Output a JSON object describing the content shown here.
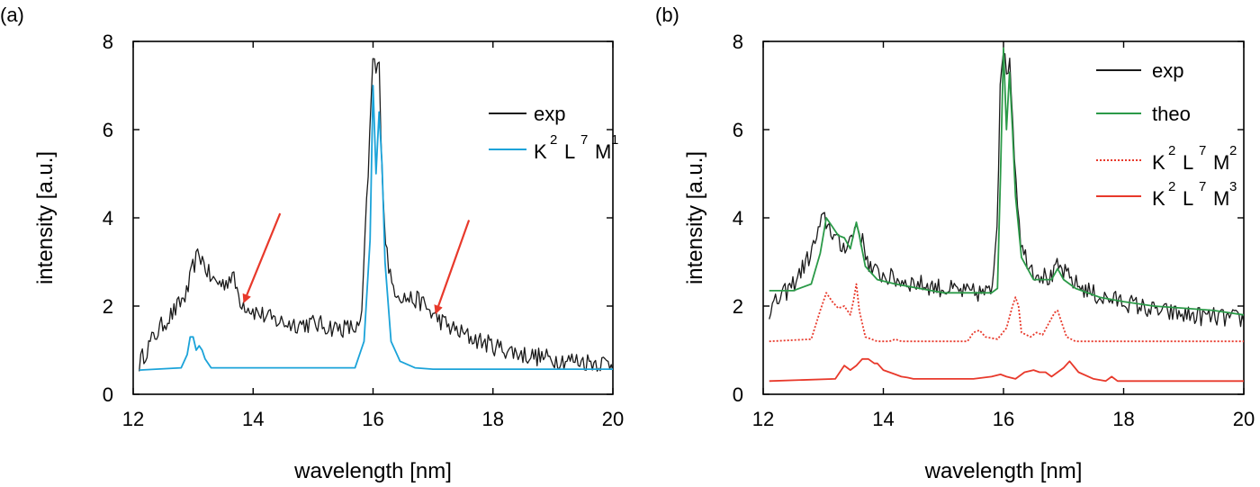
{
  "chart_data": [
    {
      "panel_label": "(a)",
      "type": "line",
      "xlabel": "wavelength [nm]",
      "ylabel": "intensity [a.u.]",
      "xlim": [
        12,
        20
      ],
      "ylim": [
        0,
        8
      ],
      "xticks": [
        "12",
        "14",
        "16",
        "18",
        "20"
      ],
      "yticks": [
        "0",
        "2",
        "4",
        "6",
        "8"
      ],
      "legend_position": "top-right",
      "series": [
        {
          "name": "exp",
          "label_main": "exp",
          "color": "#1a1a1a",
          "x": [
            12.1,
            12.3,
            12.5,
            12.7,
            12.9,
            13.0,
            13.1,
            13.3,
            13.5,
            13.65,
            13.8,
            14.0,
            14.3,
            14.6,
            15.0,
            15.4,
            15.8,
            15.95,
            16.0,
            16.05,
            16.1,
            16.15,
            16.2,
            16.3,
            16.5,
            16.8,
            17.0,
            17.3,
            17.6,
            18.0,
            18.5,
            19.0,
            19.5,
            20.0
          ],
          "y": [
            0.7,
            1.2,
            1.6,
            1.9,
            2.3,
            2.9,
            3.2,
            2.6,
            2.5,
            2.7,
            2.1,
            1.9,
            1.7,
            1.6,
            1.6,
            1.5,
            1.5,
            6.0,
            7.7,
            7.3,
            7.5,
            5.2,
            3.6,
            2.5,
            2.2,
            2.1,
            1.8,
            1.5,
            1.3,
            1.1,
            0.9,
            0.8,
            0.75,
            0.7
          ],
          "noise": 0.22
        },
        {
          "name": "K2L7M1",
          "label_main": "KLM",
          "label_sup": [
            "2",
            "7",
            "1"
          ],
          "color": "#1ba3d9",
          "x": [
            12.1,
            12.8,
            12.9,
            12.95,
            13.0,
            13.05,
            13.1,
            13.15,
            13.2,
            13.3,
            15.7,
            15.85,
            15.95,
            16.0,
            16.05,
            16.1,
            16.15,
            16.2,
            16.3,
            16.45,
            16.7,
            17.0,
            20.0
          ],
          "y": [
            0.55,
            0.6,
            0.9,
            1.3,
            1.3,
            1.0,
            1.1,
            1.0,
            0.8,
            0.6,
            0.6,
            1.2,
            3.5,
            7.0,
            5.0,
            6.4,
            5.2,
            3.0,
            1.2,
            0.75,
            0.6,
            0.57,
            0.57
          ]
        }
      ],
      "annotations": [
        {
          "type": "arrow",
          "color": "#e8392b",
          "from": [
            14.45,
            4.1
          ],
          "to": [
            13.85,
            2.1
          ]
        },
        {
          "type": "arrow",
          "color": "#e8392b",
          "from": [
            17.6,
            3.95
          ],
          "to": [
            17.05,
            1.85
          ]
        }
      ]
    },
    {
      "panel_label": "(b)",
      "type": "line",
      "xlabel": "wavelength [nm]",
      "ylabel": "intensity [a.u.]",
      "xlim": [
        12,
        20
      ],
      "ylim": [
        0,
        8
      ],
      "xticks": [
        "12",
        "14",
        "16",
        "18",
        "20"
      ],
      "yticks": [
        "0",
        "2",
        "4",
        "6",
        "8"
      ],
      "legend_position": "top-right",
      "series": [
        {
          "name": "exp",
          "label_main": "exp",
          "color": "#1a1a1a",
          "x": [
            12.1,
            12.5,
            12.8,
            13.0,
            13.1,
            13.3,
            13.5,
            13.55,
            13.8,
            14.2,
            14.6,
            15.0,
            15.4,
            15.8,
            15.9,
            15.95,
            16.0,
            16.05,
            16.1,
            16.2,
            16.3,
            16.5,
            16.8,
            16.9,
            17.2,
            17.6,
            18.0,
            18.5,
            19.0,
            19.5,
            20.0
          ],
          "y": [
            1.9,
            2.5,
            3.2,
            4.0,
            3.8,
            3.3,
            3.6,
            3.9,
            2.8,
            2.6,
            2.5,
            2.4,
            2.3,
            2.3,
            4.0,
            7.5,
            7.8,
            7.2,
            7.7,
            5.0,
            3.3,
            2.8,
            2.6,
            2.9,
            2.5,
            2.2,
            2.1,
            1.9,
            1.8,
            1.75,
            1.7
          ],
          "noise": 0.22
        },
        {
          "name": "theo",
          "label_main": "theo",
          "color": "#2b9a48",
          "x": [
            12.1,
            12.5,
            12.8,
            12.95,
            13.05,
            13.15,
            13.25,
            13.35,
            13.45,
            13.5,
            13.55,
            13.6,
            13.7,
            13.9,
            14.2,
            14.6,
            15.0,
            15.5,
            15.8,
            15.9,
            15.95,
            16.0,
            16.05,
            16.1,
            16.15,
            16.2,
            16.3,
            16.5,
            16.8,
            16.9,
            17.0,
            17.2,
            17.6,
            18.0,
            18.5,
            19.0,
            19.5,
            20.0
          ],
          "y": [
            2.35,
            2.35,
            2.5,
            3.2,
            4.0,
            3.8,
            3.6,
            3.55,
            3.3,
            3.6,
            3.9,
            3.6,
            2.9,
            2.6,
            2.5,
            2.4,
            2.3,
            2.3,
            2.3,
            2.4,
            5.0,
            7.85,
            6.0,
            7.3,
            6.0,
            4.5,
            3.1,
            2.6,
            2.6,
            2.85,
            2.6,
            2.4,
            2.2,
            2.1,
            2.0,
            1.95,
            1.9,
            1.8
          ]
        },
        {
          "name": "K2L7M2",
          "label_main": "KLM",
          "label_sup": [
            "2",
            "7",
            "2"
          ],
          "color": "#e8392b",
          "dashed": true,
          "x": [
            12.1,
            12.8,
            12.95,
            13.05,
            13.15,
            13.25,
            13.35,
            13.45,
            13.5,
            13.55,
            13.6,
            13.7,
            13.9,
            14.1,
            14.2,
            14.3,
            14.5,
            15.4,
            15.5,
            15.6,
            15.7,
            15.9,
            16.05,
            16.15,
            16.2,
            16.25,
            16.3,
            16.45,
            16.55,
            16.65,
            16.75,
            16.85,
            16.9,
            16.95,
            17.05,
            17.2,
            20.0
          ],
          "y": [
            1.2,
            1.25,
            1.9,
            2.3,
            2.1,
            1.95,
            2.0,
            1.8,
            2.1,
            2.5,
            1.9,
            1.3,
            1.2,
            1.2,
            1.25,
            1.2,
            1.2,
            1.2,
            1.4,
            1.45,
            1.3,
            1.25,
            1.5,
            2.0,
            2.2,
            2.0,
            1.4,
            1.3,
            1.4,
            1.35,
            1.6,
            1.85,
            1.9,
            1.7,
            1.3,
            1.2,
            1.2
          ]
        },
        {
          "name": "K2L7M3",
          "label_main": "KLM",
          "label_sup": [
            "2",
            "7",
            "3"
          ],
          "color": "#e8392b",
          "x": [
            12.1,
            13.2,
            13.35,
            13.45,
            13.55,
            13.65,
            13.75,
            13.85,
            13.9,
            14.0,
            14.1,
            14.2,
            14.3,
            14.4,
            14.5,
            15.5,
            15.8,
            15.95,
            16.05,
            16.2,
            16.35,
            16.5,
            16.6,
            16.7,
            16.8,
            16.9,
            17.0,
            17.1,
            17.25,
            17.5,
            17.7,
            17.8,
            17.9,
            18.2,
            20.0
          ],
          "y": [
            0.3,
            0.35,
            0.65,
            0.55,
            0.65,
            0.8,
            0.8,
            0.7,
            0.7,
            0.55,
            0.5,
            0.45,
            0.4,
            0.38,
            0.35,
            0.35,
            0.4,
            0.45,
            0.4,
            0.35,
            0.5,
            0.55,
            0.5,
            0.5,
            0.4,
            0.5,
            0.6,
            0.75,
            0.5,
            0.35,
            0.3,
            0.4,
            0.3,
            0.3,
            0.3
          ]
        }
      ]
    }
  ]
}
